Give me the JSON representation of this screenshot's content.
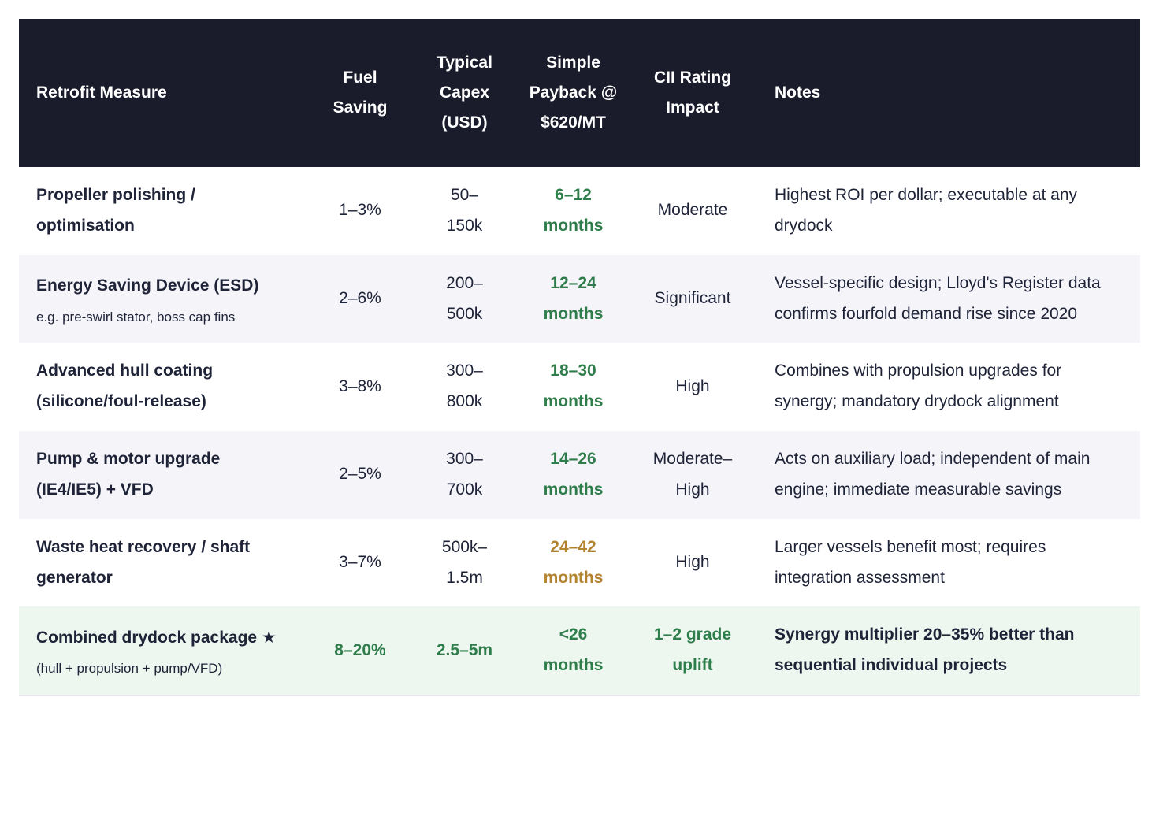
{
  "colors": {
    "header_background": "#1a1b2b",
    "header_text": "#ffffff",
    "body_text": "#1e2337",
    "positive_green": "#2e7d4a",
    "caution_gold": "#b28430",
    "stripe_row_background": "#f4f4f9",
    "highlight_row_background": "#edf7f0"
  },
  "table": {
    "headers": [
      "Retrofit Measure",
      "Fuel Saving",
      "Typical Capex (USD)",
      "Simple Payback @ $620/MT",
      "CII Rating Impact",
      "Notes"
    ],
    "rows": [
      {
        "measure": "Propeller polishing / optimisation",
        "fuel_saving": "1–3%",
        "capex": "50–150k",
        "payback": "6–12 months",
        "payback_color": "green",
        "cii_impact": "Moderate",
        "notes": "Highest ROI per dollar; executable at any drydock"
      },
      {
        "measure": "Energy Saving Device (ESD)",
        "measure_sub": "e.g. pre-swirl stator, boss cap fins",
        "fuel_saving": "2–6%",
        "capex": "200–500k",
        "payback": "12–24 months",
        "payback_color": "green",
        "cii_impact": "Significant",
        "notes": "Vessel-specific design; Lloyd's Register data confirms fourfold demand rise since 2020"
      },
      {
        "measure": "Advanced hull coating (silicone/foul-release)",
        "fuel_saving": "3–8%",
        "capex": "300–800k",
        "payback": "18–30 months",
        "payback_color": "green",
        "cii_impact": "High",
        "notes": "Combines with propulsion upgrades for synergy; mandatory drydock alignment"
      },
      {
        "measure": "Pump & motor upgrade (IE4/IE5) + VFD",
        "fuel_saving": "2–5%",
        "capex": "300–700k",
        "payback": "14–26 months",
        "payback_color": "green",
        "cii_impact": "Moderate–High",
        "notes": "Acts on auxiliary load; independent of main engine; immediate measurable savings"
      },
      {
        "measure": "Waste heat recovery / shaft generator",
        "fuel_saving": "3–7%",
        "capex": "500k–1.5m",
        "payback": "24–42 months",
        "payback_color": "gold",
        "cii_impact": "High",
        "notes": "Larger vessels benefit most; requires integration assessment"
      },
      {
        "measure": "Combined drydock package ★",
        "measure_sub": "(hull + propulsion + pump/VFD)",
        "fuel_saving": "8–20%",
        "capex": "2.5–5m",
        "payback": "<26 months",
        "payback_color": "green",
        "cii_impact": "1–2 grade uplift",
        "notes": "Synergy multiplier 20–35% better than sequential individual projects",
        "highlighted": true
      }
    ]
  }
}
